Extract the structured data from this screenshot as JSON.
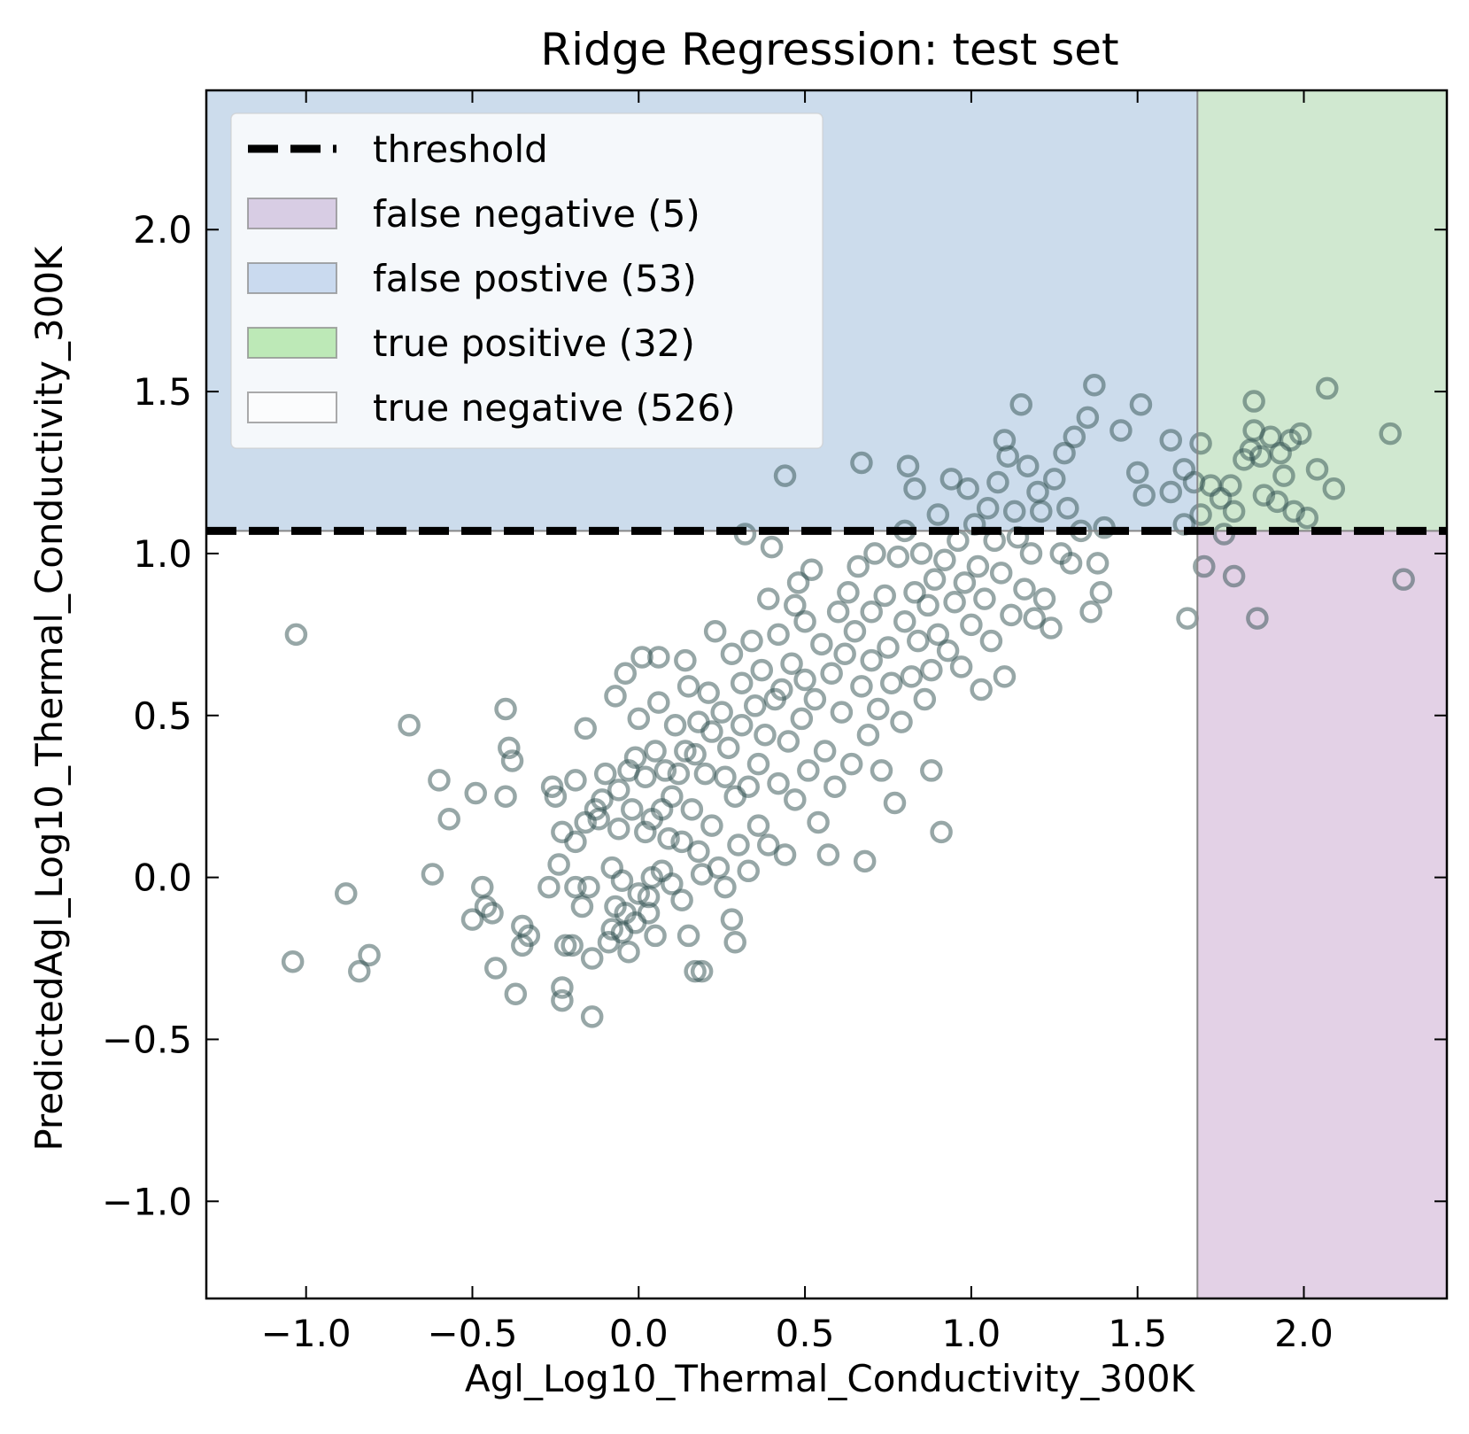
{
  "chart_data": {
    "type": "scatter",
    "title": "Ridge Regression: test set",
    "xlabel": "Agl_Log10_Thermal_Conductivity_300K",
    "ylabel": "PredictedAgl_Log10_Thermal_Conductivity_300K",
    "xlim": [
      -1.3,
      2.43
    ],
    "ylim": [
      -1.3,
      2.43
    ],
    "xticks": [
      -1.0,
      -0.5,
      0.0,
      0.5,
      1.0,
      1.5,
      2.0
    ],
    "yticks": [
      -1.0,
      -0.5,
      0.0,
      0.5,
      1.0,
      1.5,
      2.0
    ],
    "xtick_labels": [
      "−1.0",
      "−0.5",
      "0.0",
      "0.5",
      "1.0",
      "1.5",
      "2.0"
    ],
    "ytick_labels": [
      "−1.0",
      "−0.5",
      "0.0",
      "0.5",
      "1.0",
      "1.5",
      "2.0"
    ],
    "threshold_x": 1.68,
    "threshold_y": 1.07,
    "grid": false,
    "legend_position": "top-left",
    "legend": [
      {
        "label": "threshold",
        "kind": "line",
        "color": "#000000"
      },
      {
        "label": "false negative (5)",
        "kind": "patch",
        "color": "#c5b0d5"
      },
      {
        "label": "false postive (53)",
        "kind": "patch",
        "color": "#aec7e8"
      },
      {
        "label": "true positive (32)",
        "kind": "patch",
        "color": "#98df8a"
      },
      {
        "label": "true negative (526)",
        "kind": "patch",
        "color": "#ffffff"
      }
    ],
    "regions": {
      "false_positive_color": "#ccdcec",
      "true_positive_color": "#d0e8d0",
      "false_negative_color": "#e3d1e6",
      "true_negative_color": "#ffffff"
    },
    "marker_color": "#2f4f4f",
    "points": [
      [
        -1.04,
        -0.26
      ],
      [
        -1.03,
        0.75
      ],
      [
        -0.88,
        -0.05
      ],
      [
        -0.84,
        -0.29
      ],
      [
        -0.81,
        -0.24
      ],
      [
        -0.69,
        0.47
      ],
      [
        -0.62,
        0.01
      ],
      [
        -0.6,
        0.3
      ],
      [
        -0.57,
        0.18
      ],
      [
        -0.49,
        0.26
      ],
      [
        -0.5,
        -0.13
      ],
      [
        -0.47,
        -0.03
      ],
      [
        -0.46,
        -0.09
      ],
      [
        -0.44,
        -0.11
      ],
      [
        -0.43,
        -0.28
      ],
      [
        -0.4,
        0.52
      ],
      [
        -0.39,
        0.4
      ],
      [
        -0.38,
        0.36
      ],
      [
        -0.4,
        0.25
      ],
      [
        -0.37,
        -0.36
      ],
      [
        -0.35,
        -0.15
      ],
      [
        -0.35,
        -0.21
      ],
      [
        -0.33,
        -0.18
      ],
      [
        -0.27,
        -0.03
      ],
      [
        -0.26,
        0.28
      ],
      [
        -0.25,
        0.25
      ],
      [
        -0.24,
        0.04
      ],
      [
        -0.23,
        0.14
      ],
      [
        -0.23,
        -0.34
      ],
      [
        -0.23,
        -0.38
      ],
      [
        -0.22,
        -0.21
      ],
      [
        -0.2,
        -0.21
      ],
      [
        -0.19,
        0.3
      ],
      [
        -0.19,
        0.11
      ],
      [
        -0.19,
        -0.03
      ],
      [
        -0.17,
        -0.09
      ],
      [
        -0.16,
        0.17
      ],
      [
        -0.16,
        0.46
      ],
      [
        -0.15,
        -0.03
      ],
      [
        -0.14,
        -0.43
      ],
      [
        -0.14,
        -0.25
      ],
      [
        -0.13,
        0.21
      ],
      [
        -0.12,
        0.18
      ],
      [
        -0.11,
        0.24
      ],
      [
        -0.1,
        0.32
      ],
      [
        -0.08,
        0.03
      ],
      [
        -0.09,
        -0.2
      ],
      [
        -0.08,
        -0.16
      ],
      [
        -0.07,
        0.56
      ],
      [
        -0.07,
        -0.09
      ],
      [
        -0.06,
        0.27
      ],
      [
        -0.06,
        0.15
      ],
      [
        -0.05,
        -0.01
      ],
      [
        -0.05,
        -0.17
      ],
      [
        -0.04,
        -0.11
      ],
      [
        -0.04,
        0.63
      ],
      [
        -0.03,
        0.33
      ],
      [
        -0.03,
        -0.23
      ],
      [
        -0.02,
        0.21
      ],
      [
        -0.01,
        0.37
      ],
      [
        -0.01,
        -0.14
      ],
      [
        0.0,
        0.49
      ],
      [
        0.0,
        -0.05
      ],
      [
        0.01,
        0.68
      ],
      [
        0.02,
        0.31
      ],
      [
        0.02,
        0.14
      ],
      [
        0.03,
        -0.06
      ],
      [
        0.03,
        -0.11
      ],
      [
        0.04,
        0.18
      ],
      [
        0.04,
        0.0
      ],
      [
        0.05,
        0.39
      ],
      [
        0.05,
        -0.18
      ],
      [
        0.06,
        0.68
      ],
      [
        0.06,
        0.54
      ],
      [
        0.07,
        0.02
      ],
      [
        0.07,
        0.21
      ],
      [
        0.08,
        0.33
      ],
      [
        0.09,
        0.12
      ],
      [
        0.1,
        -0.02
      ],
      [
        0.1,
        0.25
      ],
      [
        0.11,
        0.47
      ],
      [
        0.12,
        0.32
      ],
      [
        0.13,
        -0.07
      ],
      [
        0.13,
        0.11
      ],
      [
        0.14,
        0.67
      ],
      [
        0.14,
        0.39
      ],
      [
        0.15,
        -0.18
      ],
      [
        0.15,
        0.59
      ],
      [
        0.16,
        0.21
      ],
      [
        0.17,
        -0.29
      ],
      [
        0.17,
        0.38
      ],
      [
        0.18,
        0.08
      ],
      [
        0.18,
        0.48
      ],
      [
        0.19,
        -0.29
      ],
      [
        0.19,
        0.01
      ],
      [
        0.2,
        0.32
      ],
      [
        0.21,
        0.57
      ],
      [
        0.22,
        0.45
      ],
      [
        0.22,
        0.16
      ],
      [
        0.23,
        0.76
      ],
      [
        0.24,
        0.03
      ],
      [
        0.25,
        0.51
      ],
      [
        0.26,
        -0.03
      ],
      [
        0.26,
        0.31
      ],
      [
        0.27,
        0.4
      ],
      [
        0.28,
        0.69
      ],
      [
        0.28,
        -0.13
      ],
      [
        0.29,
        0.25
      ],
      [
        0.29,
        -0.2
      ],
      [
        0.3,
        0.1
      ],
      [
        0.31,
        0.6
      ],
      [
        0.31,
        0.47
      ],
      [
        0.32,
        1.06
      ],
      [
        0.33,
        0.02
      ],
      [
        0.33,
        0.28
      ],
      [
        0.34,
        0.73
      ],
      [
        0.35,
        0.53
      ],
      [
        0.36,
        0.35
      ],
      [
        0.36,
        0.16
      ],
      [
        0.37,
        0.64
      ],
      [
        0.38,
        0.44
      ],
      [
        0.39,
        0.86
      ],
      [
        0.39,
        0.1
      ],
      [
        0.4,
        1.02
      ],
      [
        0.41,
        0.55
      ],
      [
        0.42,
        0.29
      ],
      [
        0.42,
        0.75
      ],
      [
        0.43,
        0.58
      ],
      [
        0.44,
        1.24
      ],
      [
        0.44,
        0.07
      ],
      [
        0.45,
        0.42
      ],
      [
        0.46,
        0.66
      ],
      [
        0.47,
        0.84
      ],
      [
        0.47,
        0.24
      ],
      [
        0.48,
        0.91
      ],
      [
        0.49,
        0.49
      ],
      [
        0.5,
        0.79
      ],
      [
        0.5,
        0.61
      ],
      [
        0.51,
        0.33
      ],
      [
        0.52,
        0.95
      ],
      [
        0.53,
        0.55
      ],
      [
        0.54,
        0.17
      ],
      [
        0.55,
        0.72
      ],
      [
        0.56,
        0.39
      ],
      [
        0.57,
        0.07
      ],
      [
        0.58,
        0.63
      ],
      [
        0.59,
        0.28
      ],
      [
        0.6,
        0.82
      ],
      [
        0.61,
        0.51
      ],
      [
        0.62,
        0.69
      ],
      [
        0.63,
        0.88
      ],
      [
        0.64,
        0.35
      ],
      [
        0.65,
        0.76
      ],
      [
        0.66,
        0.96
      ],
      [
        0.67,
        0.59
      ],
      [
        0.67,
        1.28
      ],
      [
        0.68,
        0.05
      ],
      [
        0.69,
        0.44
      ],
      [
        0.7,
        0.82
      ],
      [
        0.7,
        0.67
      ],
      [
        0.71,
        1.0
      ],
      [
        0.72,
        0.52
      ],
      [
        0.73,
        0.33
      ],
      [
        0.74,
        0.87
      ],
      [
        0.75,
        0.71
      ],
      [
        0.76,
        0.6
      ],
      [
        0.77,
        0.23
      ],
      [
        0.78,
        0.99
      ],
      [
        0.79,
        0.48
      ],
      [
        0.8,
        0.79
      ],
      [
        0.8,
        1.07
      ],
      [
        0.81,
        1.27
      ],
      [
        0.82,
        0.62
      ],
      [
        0.83,
        0.88
      ],
      [
        0.83,
        1.2
      ],
      [
        0.84,
        0.73
      ],
      [
        0.85,
        1.0
      ],
      [
        0.86,
        0.55
      ],
      [
        0.87,
        0.84
      ],
      [
        0.88,
        0.33
      ],
      [
        0.88,
        0.64
      ],
      [
        0.89,
        0.92
      ],
      [
        0.9,
        1.12
      ],
      [
        0.9,
        0.75
      ],
      [
        0.91,
        0.14
      ],
      [
        0.92,
        0.98
      ],
      [
        0.93,
        0.7
      ],
      [
        0.94,
        1.23
      ],
      [
        0.95,
        0.85
      ],
      [
        0.96,
        1.04
      ],
      [
        0.97,
        0.65
      ],
      [
        0.98,
        0.91
      ],
      [
        0.99,
        1.2
      ],
      [
        1.0,
        0.78
      ],
      [
        1.01,
        1.09
      ],
      [
        1.02,
        0.96
      ],
      [
        1.03,
        0.58
      ],
      [
        1.04,
        0.86
      ],
      [
        1.05,
        1.14
      ],
      [
        1.06,
        0.73
      ],
      [
        1.07,
        1.04
      ],
      [
        1.08,
        1.22
      ],
      [
        1.09,
        0.94
      ],
      [
        1.1,
        0.62
      ],
      [
        1.1,
        1.35
      ],
      [
        1.11,
        1.3
      ],
      [
        1.12,
        0.81
      ],
      [
        1.13,
        1.13
      ],
      [
        1.14,
        1.05
      ],
      [
        1.15,
        1.46
      ],
      [
        1.16,
        0.89
      ],
      [
        1.17,
        1.27
      ],
      [
        1.18,
        1.0
      ],
      [
        1.19,
        0.8
      ],
      [
        1.2,
        1.19
      ],
      [
        1.21,
        1.13
      ],
      [
        1.22,
        0.86
      ],
      [
        1.24,
        0.77
      ],
      [
        1.25,
        1.23
      ],
      [
        1.27,
        1.0
      ],
      [
        1.28,
        1.31
      ],
      [
        1.29,
        1.14
      ],
      [
        1.3,
        0.97
      ],
      [
        1.31,
        1.36
      ],
      [
        1.33,
        1.07
      ],
      [
        1.35,
        1.42
      ],
      [
        1.36,
        0.82
      ],
      [
        1.37,
        1.52
      ],
      [
        1.38,
        0.97
      ],
      [
        1.39,
        0.88
      ],
      [
        1.4,
        1.08
      ],
      [
        1.45,
        1.38
      ],
      [
        1.5,
        1.25
      ],
      [
        1.51,
        1.46
      ],
      [
        1.52,
        1.18
      ],
      [
        1.6,
        1.35
      ],
      [
        1.6,
        1.19
      ],
      [
        1.64,
        1.26
      ],
      [
        1.64,
        1.09
      ],
      [
        1.65,
        0.8
      ],
      [
        1.67,
        1.22
      ],
      [
        1.69,
        1.34
      ],
      [
        1.69,
        1.12
      ],
      [
        1.7,
        0.96
      ],
      [
        1.72,
        1.21
      ],
      [
        1.75,
        1.17
      ],
      [
        1.76,
        1.06
      ],
      [
        1.78,
        1.21
      ],
      [
        1.79,
        1.13
      ],
      [
        1.79,
        0.93
      ],
      [
        1.82,
        1.29
      ],
      [
        1.84,
        1.32
      ],
      [
        1.85,
        1.47
      ],
      [
        1.85,
        1.38
      ],
      [
        1.86,
        0.8
      ],
      [
        1.87,
        1.3
      ],
      [
        1.88,
        1.18
      ],
      [
        1.9,
        1.36
      ],
      [
        1.92,
        1.16
      ],
      [
        1.93,
        1.31
      ],
      [
        1.94,
        1.24
      ],
      [
        1.96,
        1.35
      ],
      [
        1.97,
        1.13
      ],
      [
        1.99,
        1.37
      ],
      [
        2.01,
        1.11
      ],
      [
        2.04,
        1.26
      ],
      [
        2.07,
        1.51
      ],
      [
        2.09,
        1.2
      ],
      [
        2.26,
        1.37
      ],
      [
        2.3,
        0.92
      ]
    ]
  }
}
